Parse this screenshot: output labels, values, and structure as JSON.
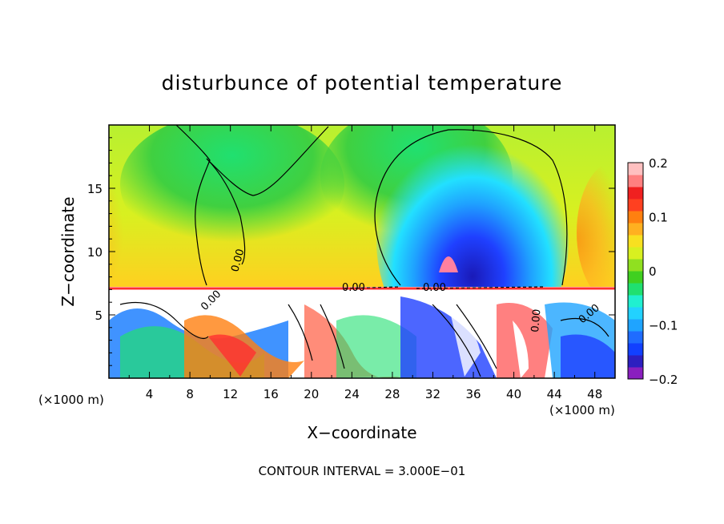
{
  "chart_data": {
    "type": "heatmap",
    "title": "disturbunce of potential temperature",
    "xlabel": "X−coordinate",
    "ylabel": "Z−coordinate",
    "x_unit_left": "(×1000 m)",
    "x_unit_right": "(×1000 m)",
    "footer": "CONTOUR INTERVAL = 3.000E−01",
    "xlim": [
      0,
      50
    ],
    "ylim": [
      0,
      20
    ],
    "x_ticks": [
      4,
      8,
      12,
      16,
      20,
      24,
      28,
      32,
      36,
      40,
      44,
      48
    ],
    "x_tick_labels": [
      "4",
      "8",
      "12",
      "16",
      "20",
      "24",
      "28",
      "32",
      "36",
      "40",
      "44",
      "48"
    ],
    "y_ticks": [
      5,
      10,
      15
    ],
    "y_tick_labels": [
      "5",
      "10",
      "15"
    ],
    "colorbar": {
      "min": -0.2,
      "max": 0.2,
      "ticks": [
        0.2,
        0.1,
        0,
        -0.1,
        -0.2
      ],
      "tick_labels": [
        "0.2",
        "0.1",
        "0",
        "−0.1",
        "−0.2"
      ],
      "colors": [
        "#8a1fbf",
        "#2d1fc0",
        "#1240ff",
        "#1f6cff",
        "#1fa4ff",
        "#22d2ff",
        "#20f0d0",
        "#20e070",
        "#40d020",
        "#90e020",
        "#d8f020",
        "#f8e020",
        "#ffb020",
        "#ff8010",
        "#ff4020",
        "#f02020",
        "#ff8080",
        "#ffc0c0"
      ]
    },
    "contour_labels": [
      "0.00",
      "0.00",
      "0.00",
      "0.00",
      "0.00",
      "0.00"
    ],
    "grid": false,
    "legend": "colorbar-right"
  }
}
